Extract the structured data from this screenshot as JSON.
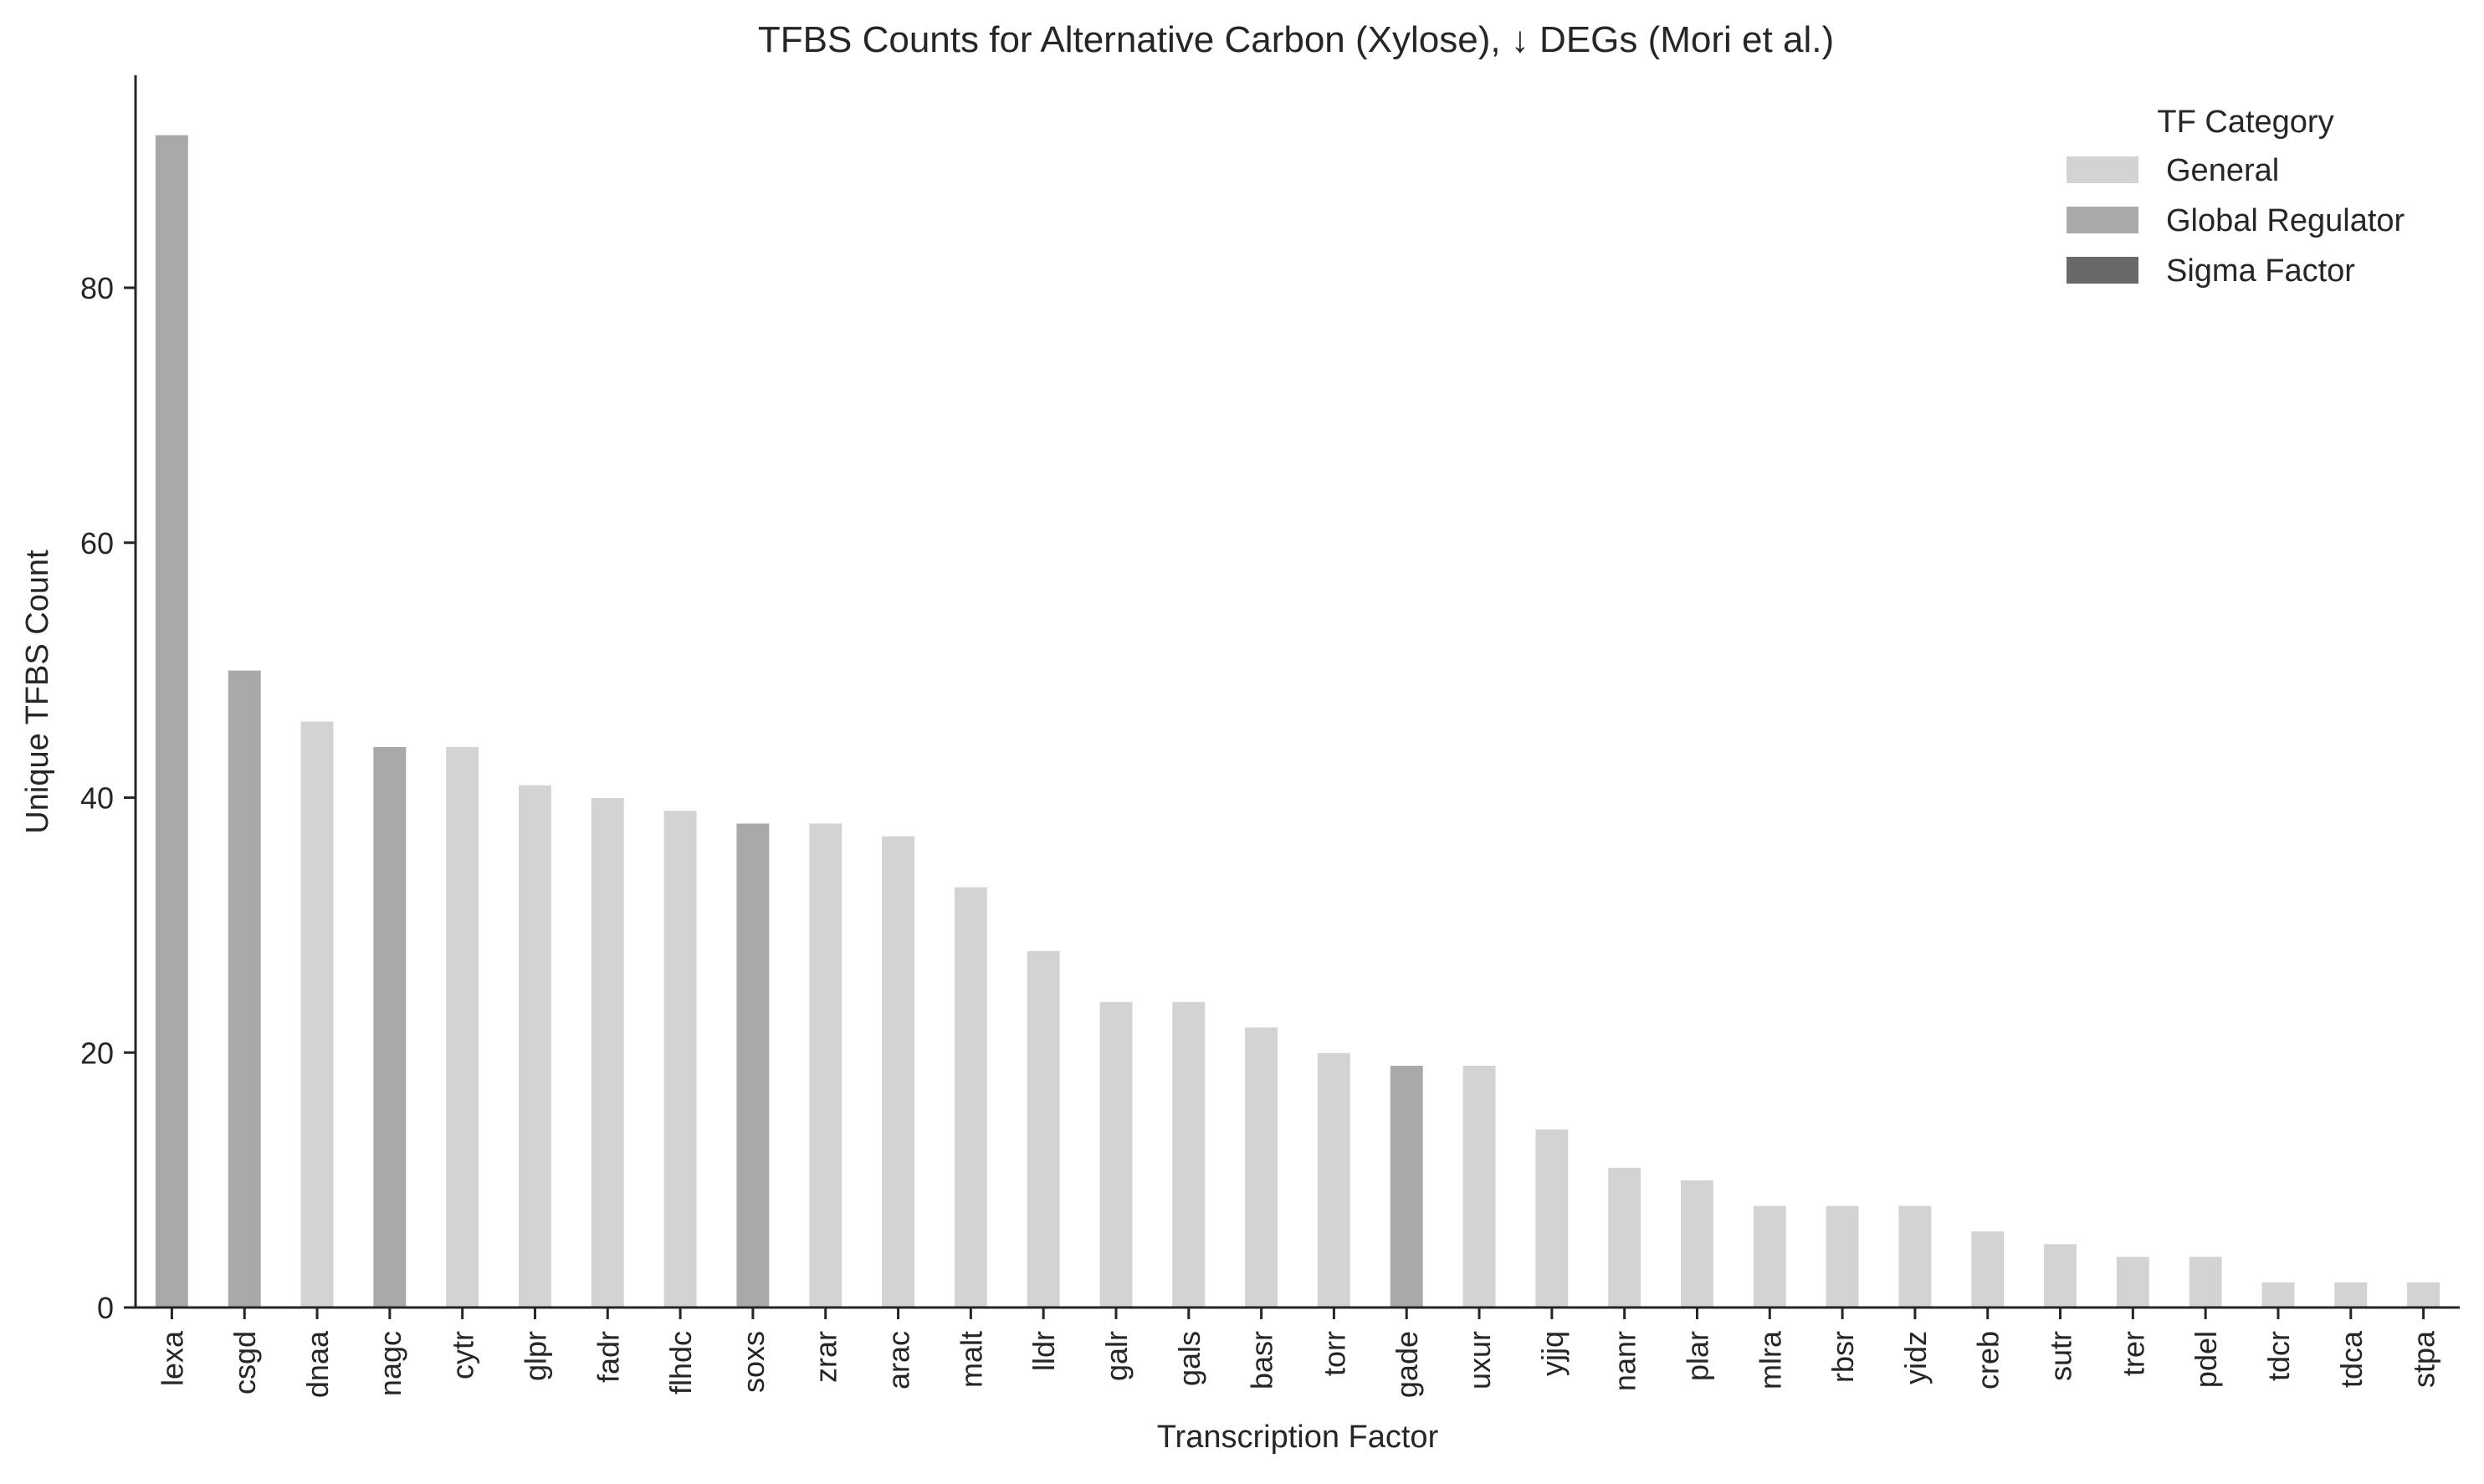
{
  "chart_data": {
    "type": "bar",
    "title": "TFBS Counts for Alternative Carbon (Xylose), ↓ DEGs (Mori et al.)",
    "xlabel": "Transcription Factor",
    "ylabel": "Unique TFBS Count",
    "ylim": [
      0,
      96
    ],
    "yticks": [
      "0",
      "20",
      "40",
      "60",
      "80"
    ],
    "grid": false,
    "legend": {
      "title": "TF Category",
      "placement": "top-right",
      "entries": [
        {
          "name": "General",
          "color": "#d3d3d3"
        },
        {
          "name": "Global Regulator",
          "color": "#a9a9a9"
        },
        {
          "name": "Sigma Factor",
          "color": "#696969"
        }
      ]
    },
    "categories": [
      "lexa",
      "csgd",
      "dnaa",
      "nagc",
      "cytr",
      "glpr",
      "fadr",
      "flhdc",
      "soxs",
      "zrar",
      "arac",
      "malt",
      "lldr",
      "galr",
      "gals",
      "basr",
      "torr",
      "gade",
      "uxur",
      "yjjq",
      "nanr",
      "plar",
      "mlra",
      "rbsr",
      "yidz",
      "creb",
      "sutr",
      "trer",
      "pdel",
      "tdcr",
      "tdca",
      "stpa"
    ],
    "values": [
      92,
      50,
      46,
      44,
      44,
      41,
      40,
      39,
      38,
      38,
      37,
      33,
      28,
      24,
      24,
      22,
      20,
      19,
      19,
      14,
      11,
      10,
      8,
      8,
      8,
      6,
      5,
      4,
      4,
      2,
      2,
      2
    ],
    "bar_categories": [
      "Global Regulator",
      "Global Regulator",
      "General",
      "Global Regulator",
      "General",
      "General",
      "General",
      "General",
      "Global Regulator",
      "General",
      "General",
      "General",
      "General",
      "General",
      "General",
      "General",
      "General",
      "Global Regulator",
      "General",
      "General",
      "General",
      "General",
      "General",
      "General",
      "General",
      "General",
      "General",
      "General",
      "General",
      "General",
      "General",
      "General"
    ]
  }
}
